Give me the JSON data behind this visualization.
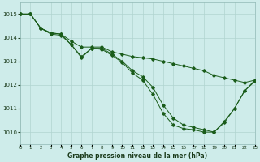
{
  "title": "Graphe pression niveau de la mer (hPa)",
  "bg_color": "#ceecea",
  "grid_color": "#b0d4d0",
  "line_color": "#1a5c1a",
  "x_min": 0,
  "x_max": 23,
  "y_min": 1009.5,
  "y_max": 1015.5,
  "y_ticks": [
    1010,
    1011,
    1012,
    1013,
    1014,
    1015
  ],
  "x_ticks": [
    0,
    1,
    2,
    3,
    4,
    5,
    6,
    7,
    8,
    9,
    10,
    11,
    12,
    13,
    14,
    15,
    16,
    17,
    18,
    19,
    20,
    21,
    22,
    23
  ],
  "s1": [
    1015.0,
    1015.0,
    1014.4,
    1014.2,
    1014.15,
    1013.85,
    1013.6,
    1013.6,
    1013.6,
    1013.4,
    1013.3,
    1013.2,
    1013.15,
    1013.1,
    1013.0,
    1012.9,
    1012.8,
    1012.7,
    1012.6,
    1012.4,
    1012.3,
    1012.2,
    1012.1,
    1012.2
  ],
  "s2": [
    1015.0,
    1015.0,
    1014.4,
    1014.2,
    1014.15,
    1013.7,
    1013.2,
    1013.55,
    1013.55,
    1013.3,
    1013.0,
    1012.6,
    1012.35,
    1011.9,
    1011.15,
    1010.6,
    1010.3,
    1010.2,
    1010.1,
    1010.0,
    1010.45,
    1011.0,
    1011.75,
    1012.2
  ],
  "s3": [
    1015.0,
    1015.0,
    1014.4,
    1014.15,
    1014.1,
    1013.7,
    1013.15,
    1013.55,
    1013.5,
    1013.25,
    1012.95,
    1012.5,
    1012.2,
    1011.6,
    1010.8,
    1010.3,
    1010.15,
    1010.1,
    1010.0,
    1010.0,
    1010.4,
    1011.0,
    1011.75,
    1012.15
  ]
}
